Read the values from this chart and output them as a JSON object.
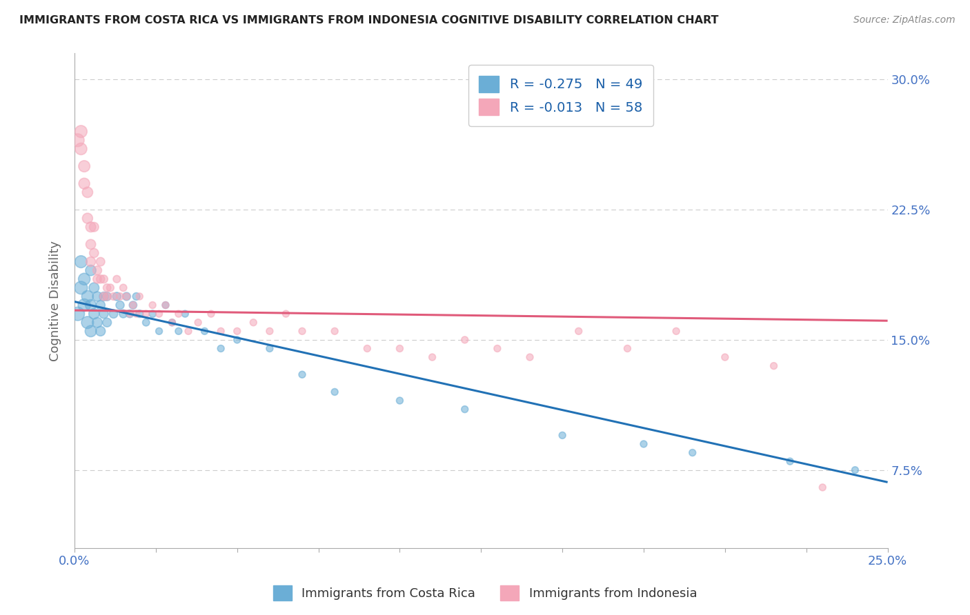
{
  "title": "IMMIGRANTS FROM COSTA RICA VS IMMIGRANTS FROM INDONESIA COGNITIVE DISABILITY CORRELATION CHART",
  "source": "Source: ZipAtlas.com",
  "ylabel": "Cognitive Disability",
  "xmin": 0.0,
  "xmax": 0.25,
  "ymin": 0.03,
  "ymax": 0.315,
  "yticks": [
    0.075,
    0.15,
    0.225,
    0.3
  ],
  "ytick_labels": [
    "7.5%",
    "15.0%",
    "22.5%",
    "30.0%"
  ],
  "xticks": [
    0.0,
    0.025,
    0.05,
    0.075,
    0.1,
    0.125,
    0.15,
    0.175,
    0.2,
    0.225,
    0.25
  ],
  "grid_color": "#cccccc",
  "background_color": "#ffffff",
  "series": [
    {
      "name": "Immigrants from Costa Rica",
      "color": "#6baed6",
      "line_color": "#2171b5",
      "R": -0.275,
      "N": 49,
      "x": [
        0.001,
        0.002,
        0.002,
        0.003,
        0.003,
        0.004,
        0.004,
        0.005,
        0.005,
        0.005,
        0.006,
        0.006,
        0.007,
        0.007,
        0.008,
        0.008,
        0.009,
        0.009,
        0.01,
        0.01,
        0.012,
        0.013,
        0.014,
        0.015,
        0.016,
        0.017,
        0.018,
        0.019,
        0.02,
        0.022,
        0.024,
        0.026,
        0.028,
        0.03,
        0.032,
        0.034,
        0.04,
        0.045,
        0.05,
        0.06,
        0.07,
        0.08,
        0.1,
        0.12,
        0.15,
        0.175,
        0.19,
        0.22,
        0.24
      ],
      "y": [
        0.165,
        0.18,
        0.195,
        0.17,
        0.185,
        0.16,
        0.175,
        0.155,
        0.17,
        0.19,
        0.165,
        0.18,
        0.16,
        0.175,
        0.155,
        0.17,
        0.165,
        0.175,
        0.16,
        0.175,
        0.165,
        0.175,
        0.17,
        0.165,
        0.175,
        0.165,
        0.17,
        0.175,
        0.165,
        0.16,
        0.165,
        0.155,
        0.17,
        0.16,
        0.155,
        0.165,
        0.155,
        0.145,
        0.15,
        0.145,
        0.13,
        0.12,
        0.115,
        0.11,
        0.095,
        0.09,
        0.085,
        0.08,
        0.075
      ],
      "sizes": [
        200,
        180,
        160,
        170,
        150,
        160,
        150,
        140,
        130,
        120,
        120,
        110,
        110,
        100,
        100,
        90,
        90,
        85,
        85,
        80,
        80,
        75,
        75,
        70,
        70,
        65,
        65,
        60,
        60,
        55,
        55,
        50,
        50,
        50,
        50,
        50,
        50,
        50,
        50,
        50,
        50,
        50,
        50,
        50,
        50,
        50,
        50,
        50,
        50
      ],
      "trend_x": [
        0.0,
        0.25
      ],
      "trend_y_start": 0.172,
      "trend_y_end": 0.068
    },
    {
      "name": "Immigrants from Indonesia",
      "color": "#f4a7b9",
      "line_color": "#e05a7a",
      "R": -0.013,
      "N": 58,
      "x": [
        0.001,
        0.002,
        0.002,
        0.003,
        0.003,
        0.004,
        0.004,
        0.005,
        0.005,
        0.005,
        0.006,
        0.006,
        0.007,
        0.007,
        0.008,
        0.008,
        0.009,
        0.009,
        0.01,
        0.01,
        0.011,
        0.012,
        0.013,
        0.014,
        0.015,
        0.016,
        0.017,
        0.018,
        0.019,
        0.02,
        0.022,
        0.024,
        0.026,
        0.028,
        0.03,
        0.032,
        0.035,
        0.038,
        0.042,
        0.045,
        0.05,
        0.055,
        0.06,
        0.065,
        0.07,
        0.08,
        0.09,
        0.1,
        0.11,
        0.12,
        0.13,
        0.14,
        0.155,
        0.17,
        0.185,
        0.2,
        0.215,
        0.23
      ],
      "y": [
        0.265,
        0.27,
        0.26,
        0.25,
        0.24,
        0.235,
        0.22,
        0.215,
        0.205,
        0.195,
        0.215,
        0.2,
        0.19,
        0.185,
        0.195,
        0.185,
        0.175,
        0.185,
        0.18,
        0.175,
        0.18,
        0.175,
        0.185,
        0.175,
        0.18,
        0.175,
        0.165,
        0.17,
        0.165,
        0.175,
        0.165,
        0.17,
        0.165,
        0.17,
        0.16,
        0.165,
        0.155,
        0.16,
        0.165,
        0.155,
        0.155,
        0.16,
        0.155,
        0.165,
        0.155,
        0.155,
        0.145,
        0.145,
        0.14,
        0.15,
        0.145,
        0.14,
        0.155,
        0.145,
        0.155,
        0.14,
        0.135,
        0.065
      ],
      "sizes": [
        180,
        160,
        150,
        140,
        130,
        120,
        115,
        110,
        105,
        100,
        95,
        90,
        85,
        80,
        80,
        75,
        70,
        70,
        65,
        65,
        60,
        60,
        58,
        55,
        55,
        52,
        50,
        50,
        50,
        50,
        50,
        50,
        50,
        50,
        50,
        50,
        50,
        50,
        50,
        50,
        50,
        50,
        50,
        50,
        50,
        50,
        50,
        50,
        50,
        50,
        50,
        50,
        50,
        50,
        50,
        50,
        50,
        50
      ],
      "trend_x": [
        0.0,
        0.25
      ],
      "trend_y_start": 0.167,
      "trend_y_end": 0.161
    }
  ],
  "legend_color": "#1a5fa8",
  "title_color": "#222222",
  "source_color": "#888888",
  "axis_label_color": "#666666",
  "tick_color": "#666666",
  "right_tick_color": "#4472c4"
}
